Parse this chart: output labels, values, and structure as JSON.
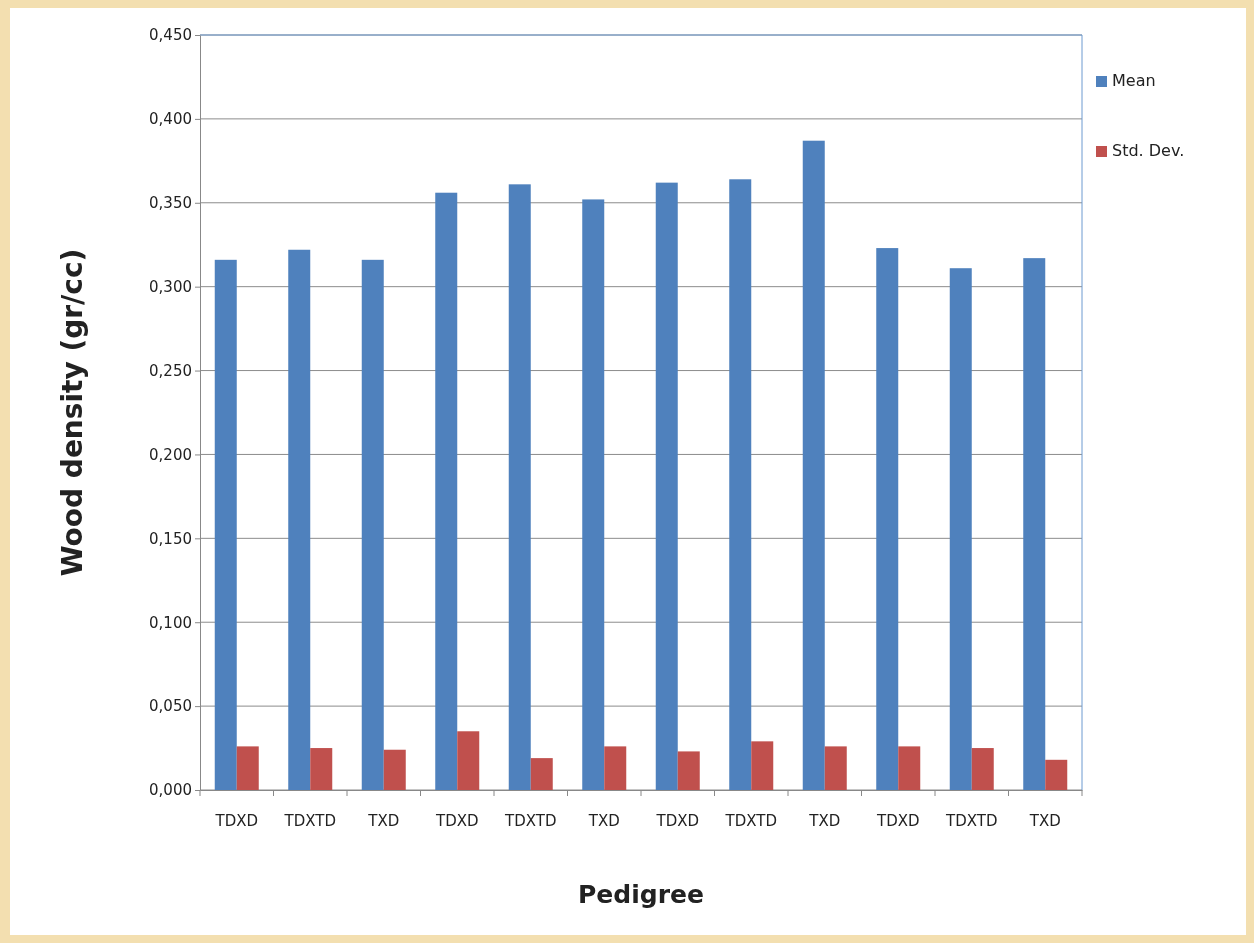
{
  "chart_data": {
    "type": "bar",
    "xlabel": "Pedigree",
    "ylabel": "Wood density (gr/cc)",
    "categories": [
      "TDXD",
      "TDXTD",
      "TXD",
      "TDXD",
      "TDXTD",
      "TXD",
      "TDXD",
      "TDXTD",
      "TXD",
      "TDXD",
      "TDXTD",
      "TXD"
    ],
    "series": [
      {
        "name": "Mean",
        "color": "#4f81bd",
        "values": [
          0.316,
          0.322,
          0.316,
          0.356,
          0.361,
          0.352,
          0.362,
          0.364,
          0.387,
          0.323,
          0.311,
          0.317
        ]
      },
      {
        "name": "Std. Dev.",
        "color": "#c0504d",
        "values": [
          0.026,
          0.025,
          0.024,
          0.035,
          0.019,
          0.026,
          0.023,
          0.029,
          0.026,
          0.026,
          0.025,
          0.018
        ]
      }
    ],
    "ylim": [
      0,
      0.45
    ],
    "yticks": [
      {
        "value": 0,
        "label": "0,000"
      },
      {
        "value": 0.05,
        "label": "0,050"
      },
      {
        "value": 0.1,
        "label": "0,100"
      },
      {
        "value": 0.15,
        "label": "0,150"
      },
      {
        "value": 0.2,
        "label": "0,200"
      },
      {
        "value": 0.25,
        "label": "0,250"
      },
      {
        "value": 0.3,
        "label": "0,300"
      },
      {
        "value": 0.35,
        "label": "0,350"
      },
      {
        "value": 0.4,
        "label": "0,400"
      },
      {
        "value": 0.45,
        "label": "0,450"
      }
    ],
    "grid": "y",
    "legend": "top right"
  }
}
